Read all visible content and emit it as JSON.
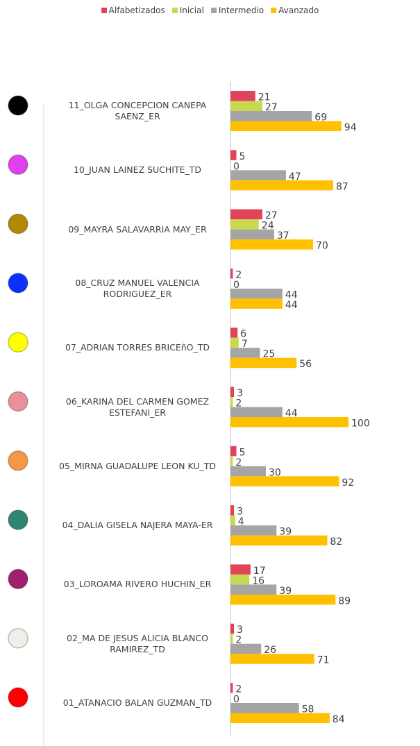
{
  "chart_data": {
    "type": "bar",
    "orientation": "horizontal",
    "categories": [
      "11_OLGA CONCEPCION CANEPA SAENZ_ER",
      "10_JUAN LAINEZ SUCHITE_TD",
      "09_MAYRA SALAVARRIA MAY_ER",
      "08_CRUZ MANUEL VALENCIA RODRIGUEZ_ER",
      "07_ADRIAN TORRES BRICEñO_TD",
      "06_KARINA DEL CARMEN GOMEZ ESTEFANI_ER",
      "05_MIRNA GUADALUPE LEON KU_TD",
      "04_DALIA GISELA NAJERA MAYA-ER",
      "03_LOROAMA RIVERO HUCHIN_ER",
      "02_MA DE JESUS ALICIA BLANCO RAMIREZ_TD",
      "01_ATANACIO BALAN GUZMAN_TD"
    ],
    "marker_colors": [
      "#000000",
      "#e040f0",
      "#b08a00",
      "#0a32ff",
      "#ffff00",
      "#e8909c",
      "#f79646",
      "#2e8572",
      "#a0206e",
      "#f0eee6",
      "#ff0000"
    ],
    "series": [
      {
        "name": "Alfabetizados",
        "color": "#e0435a",
        "values": [
          21,
          5,
          27,
          2,
          6,
          3,
          5,
          3,
          17,
          3,
          2
        ]
      },
      {
        "name": "Inicial",
        "color": "#c9d94f",
        "values": [
          27,
          0,
          24,
          0,
          7,
          2,
          2,
          4,
          16,
          2,
          0
        ]
      },
      {
        "name": "Intermedio",
        "color": "#a5a5a5",
        "values": [
          69,
          47,
          37,
          44,
          25,
          44,
          30,
          39,
          39,
          26,
          58
        ]
      },
      {
        "name": "Avanzado",
        "color": "#ffc000",
        "values": [
          94,
          87,
          70,
          44,
          56,
          100,
          92,
          82,
          89,
          71,
          84
        ]
      }
    ],
    "xlim": [
      0,
      150
    ],
    "xticks": [
      0,
      50,
      100,
      150
    ],
    "legend": "top"
  }
}
